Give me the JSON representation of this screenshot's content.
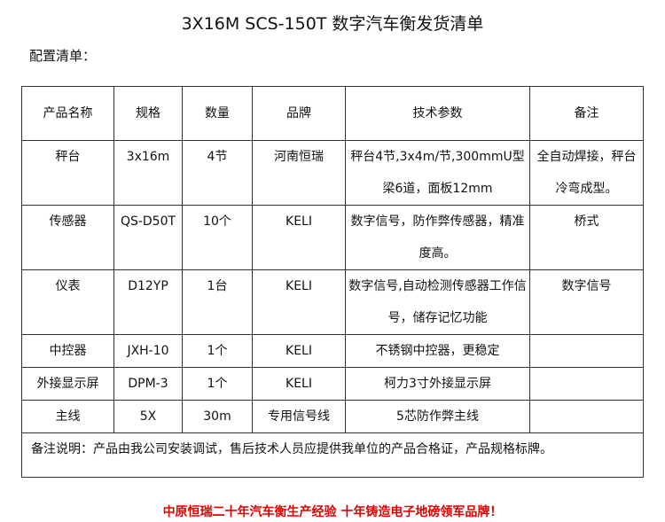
{
  "title": "3X16M SCS-150T 数字汽车衡发货清单",
  "subtitle": "配置清单：",
  "headers": [
    "产品名称",
    "规格",
    "数量",
    "品牌",
    "技术参数",
    "备注"
  ],
  "rows": [
    [
      "秤台",
      "3x16m",
      "4节",
      "河南恒瑞",
      "秤台4节,3x4m/节,300mmU型梁6道，面板12mm",
      "全自动焊接，秤台冷弯成型。"
    ],
    [
      "传感器",
      "QS-D50T",
      "10个",
      "KELI",
      "数字信号，防作弊传感器，精准度高。",
      "桥式"
    ],
    [
      "仪表",
      "D12YP",
      "1台",
      "KELI",
      "数字信号,自动检测传感器工作信号，储存记忆功能",
      "数字信号"
    ],
    [
      "中控器",
      "JXH-10",
      "1个",
      "KELI",
      "不锈钢中控器，更稳定",
      ""
    ],
    [
      "外接显示屏",
      "DPM-3",
      "1个",
      "KELI",
      "柯力3寸外接显示屏",
      ""
    ],
    [
      "主线",
      "5X",
      "30m",
      "专用信号线",
      "5芯防作弊主线",
      ""
    ]
  ],
  "note": "备注说明：产品由我公司安装调试，售后技术人员应提供我单位的产品合格证，产品规格标牌。",
  "slogan": "中原恒瑞二十年汽车衡生产经验  十年铸造电子地磅领军品牌！",
  "colors": {
    "slogan": "#e00000"
  }
}
